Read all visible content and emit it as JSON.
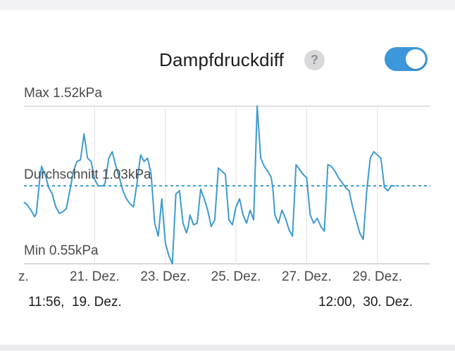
{
  "header": {
    "title": "Dampfdruckdiff",
    "help_icon": "question-mark-icon",
    "toggle_on": true,
    "toggle_color": "#3d97db"
  },
  "footer": {
    "start_label": "11:56,  19. Dez.",
    "end_label": "12:00,  30. Dez."
  },
  "chart_data": {
    "type": "line",
    "unit": "kPa",
    "color": "#3d9ad1",
    "ylim": [
      0.55,
      1.52
    ],
    "max_label": "Max 1.52kPa",
    "avg_label": "Durchschnitt 1.03kPa",
    "min_label": "Min 0.55kPa",
    "max": 1.52,
    "average": 1.03,
    "min": 0.55,
    "x_ticks": [
      {
        "label": "z.",
        "x": 19.0
      },
      {
        "label": "21. Dez.",
        "x": 21.0
      },
      {
        "label": "23. Dez.",
        "x": 23.0
      },
      {
        "label": "25. Dez.",
        "x": 25.0
      },
      {
        "label": "27. Dez.",
        "x": 27.0
      },
      {
        "label": "29. Dez.",
        "x": 29.0
      }
    ],
    "xlim": [
      19.0,
      30.5
    ],
    "series": [
      {
        "x": [
          19.0,
          19.1,
          19.2,
          19.3,
          19.35,
          19.45,
          19.5,
          19.55,
          19.6,
          19.7,
          19.8,
          19.9,
          20.0,
          20.1,
          20.2,
          20.3,
          20.4,
          20.5,
          20.6,
          20.7,
          20.8,
          20.9,
          21.0,
          21.1,
          21.2,
          21.25,
          21.3,
          21.4,
          21.5,
          21.6,
          21.7,
          21.8,
          21.9,
          22.0,
          22.1,
          22.2,
          22.3,
          22.4,
          22.5,
          22.6,
          22.7,
          22.8,
          22.9,
          23.0,
          23.1,
          23.2,
          23.3,
          23.4,
          23.5,
          23.6,
          23.65,
          23.7,
          23.8,
          23.9,
          24.0,
          24.1,
          24.2,
          24.3,
          24.4,
          24.5,
          24.6,
          24.7,
          24.8,
          24.9,
          25.0,
          25.1,
          25.2,
          25.3,
          25.4,
          25.5,
          25.6,
          25.7,
          25.8,
          25.9,
          26.0,
          26.05,
          26.1,
          26.2,
          26.3,
          26.4,
          26.5,
          26.6,
          26.7,
          26.8,
          26.9,
          27.0,
          27.1,
          27.2,
          27.3,
          27.4,
          27.5,
          27.6,
          27.7,
          27.8,
          27.9,
          28.0,
          28.1,
          28.2,
          28.3,
          28.4,
          28.5,
          28.6,
          28.7,
          28.8,
          28.9,
          29.0,
          29.1,
          29.2,
          29.3,
          29.4,
          29.5
        ],
        "values": [
          0.93,
          0.91,
          0.88,
          0.84,
          0.86,
          1.08,
          1.15,
          1.12,
          1.1,
          1.02,
          0.98,
          0.9,
          0.86,
          0.87,
          0.89,
          1.0,
          1.12,
          1.18,
          1.19,
          1.35,
          1.2,
          1.18,
          1.07,
          1.03,
          1.03,
          1.03,
          1.05,
          1.2,
          1.24,
          1.15,
          1.08,
          1.0,
          0.95,
          0.92,
          0.9,
          1.05,
          1.22,
          1.18,
          1.2,
          1.1,
          0.8,
          0.72,
          0.95,
          0.68,
          0.6,
          0.55,
          0.98,
          1.0,
          0.8,
          0.74,
          0.78,
          0.85,
          0.79,
          0.8,
          1.01,
          0.95,
          0.88,
          0.78,
          0.82,
          1.14,
          1.12,
          1.1,
          0.82,
          0.79,
          0.9,
          0.95,
          0.85,
          0.8,
          0.88,
          0.82,
          1.52,
          1.2,
          1.15,
          1.12,
          1.08,
          1.0,
          0.85,
          0.8,
          0.88,
          0.83,
          0.76,
          0.72,
          1.16,
          1.13,
          1.1,
          1.08,
          0.85,
          0.8,
          0.83,
          0.78,
          0.75,
          1.16,
          1.15,
          1.12,
          1.08,
          1.05,
          1.02,
          1.0,
          0.9,
          0.82,
          0.74,
          0.7,
          1.0,
          1.2,
          1.24,
          1.22,
          1.2,
          1.02,
          1.0,
          1.03,
          1.03
        ]
      }
    ]
  }
}
